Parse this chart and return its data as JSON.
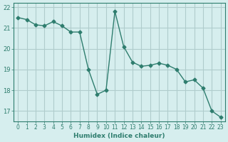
{
  "x": [
    0,
    1,
    2,
    3,
    4,
    5,
    6,
    7,
    8,
    9,
    10,
    11,
    12,
    13,
    14,
    15,
    16,
    17,
    18,
    19,
    20,
    21,
    22,
    23
  ],
  "y": [
    21.5,
    21.4,
    21.15,
    21.1,
    21.3,
    21.1,
    20.8,
    20.8,
    19.0,
    17.8,
    18.0,
    21.8,
    20.1,
    19.35,
    19.15,
    19.2,
    19.3,
    19.2,
    19.0,
    18.4,
    18.5,
    18.1,
    17.0,
    16.7
  ],
  "xlabel": "Humidex (Indice chaleur)",
  "ylim": [
    16.5,
    22.2
  ],
  "yticks": [
    17,
    18,
    19,
    20,
    21,
    22
  ],
  "xticks": [
    0,
    1,
    2,
    3,
    4,
    5,
    6,
    7,
    8,
    9,
    10,
    11,
    12,
    13,
    14,
    15,
    16,
    17,
    18,
    19,
    20,
    21,
    22,
    23
  ],
  "line_color": "#2e7d6e",
  "marker": "D",
  "marker_size": 2.5,
  "bg_color": "#d6eeee",
  "grid_color": "#b0cccc",
  "axis_color": "#2e7d6e",
  "tick_label_color": "#2e7d6e",
  "xlabel_color": "#2e7d6e"
}
